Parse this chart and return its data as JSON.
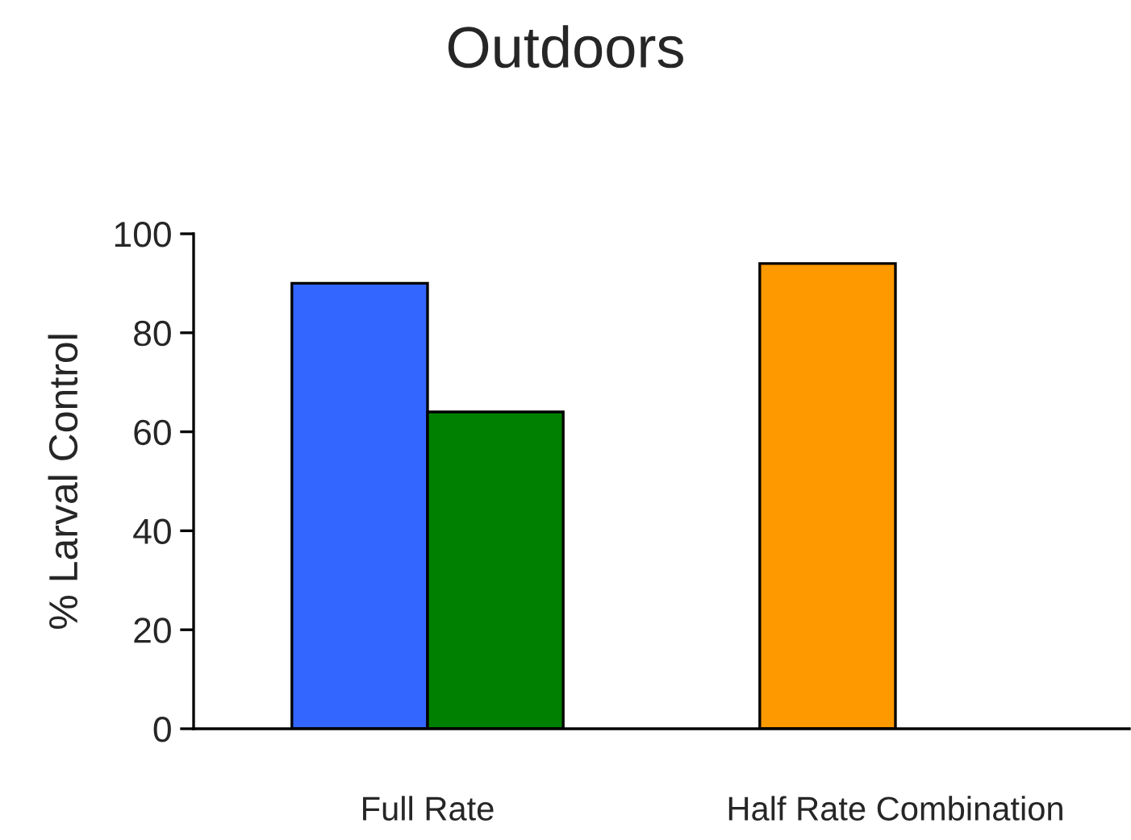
{
  "chart_data": {
    "type": "bar",
    "title": "Outdoors",
    "ylabel": "% Larval Control",
    "categories": [
      "Full Rate",
      "Half Rate Combination"
    ],
    "series": [
      {
        "colors": [
          "#3366ff",
          "#ff9900"
        ],
        "values": [
          90,
          94
        ]
      },
      {
        "color": "#008000",
        "values": [
          64,
          null
        ]
      }
    ],
    "ylim": [
      0,
      100
    ],
    "yticks": [
      0,
      20,
      40,
      60,
      80,
      100
    ],
    "grid": false,
    "legend": false
  }
}
